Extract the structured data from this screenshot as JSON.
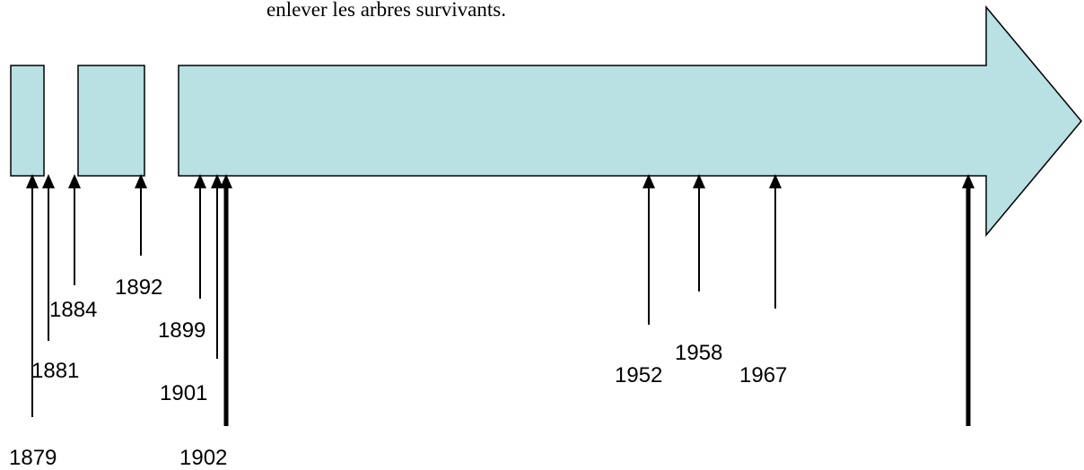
{
  "caption": "enlever les arbres survivants.",
  "events": [
    "1879",
    "1881",
    "1884",
    "1892",
    "1899",
    "1901",
    "1902",
    "1952",
    "1958",
    "1967"
  ]
}
